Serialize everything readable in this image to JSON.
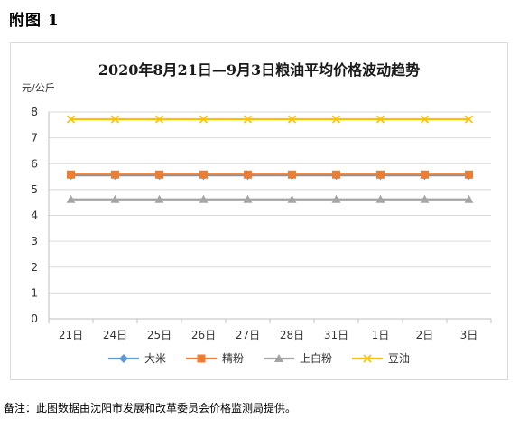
{
  "figure_label": "附图 1",
  "note": "备注：此图数据由沈阳市发展和改革委员会价格监测局提供。",
  "chart_data": {
    "type": "line",
    "title": "2020年8月21日—9月3日粮油平均价格波动趋势",
    "ylabel": "元/公斤",
    "xlabel": "",
    "categories": [
      "21日",
      "24日",
      "25日",
      "26日",
      "27日",
      "28日",
      "31日",
      "1日",
      "2日",
      "3日"
    ],
    "ylim": [
      0,
      8
    ],
    "yticks": [
      0,
      1,
      2,
      3,
      4,
      5,
      6,
      7,
      8
    ],
    "grid": true,
    "legend_position": "bottom",
    "series": [
      {
        "name": "大米",
        "color": "#5b9bd5",
        "marker": "diamond",
        "values": [
          5.55,
          5.55,
          5.55,
          5.55,
          5.55,
          5.55,
          5.55,
          5.55,
          5.55,
          5.55
        ]
      },
      {
        "name": "精粉",
        "color": "#ed7d31",
        "marker": "square",
        "values": [
          5.58,
          5.58,
          5.58,
          5.58,
          5.58,
          5.58,
          5.58,
          5.58,
          5.58,
          5.58
        ]
      },
      {
        "name": "上白粉",
        "color": "#a5a5a5",
        "marker": "triangle",
        "values": [
          4.62,
          4.62,
          4.62,
          4.62,
          4.62,
          4.62,
          4.62,
          4.62,
          4.62,
          4.62
        ]
      },
      {
        "name": "豆油",
        "color": "#ffc000",
        "marker": "x",
        "values": [
          7.72,
          7.72,
          7.72,
          7.72,
          7.72,
          7.72,
          7.72,
          7.72,
          7.72,
          7.72
        ]
      }
    ]
  }
}
